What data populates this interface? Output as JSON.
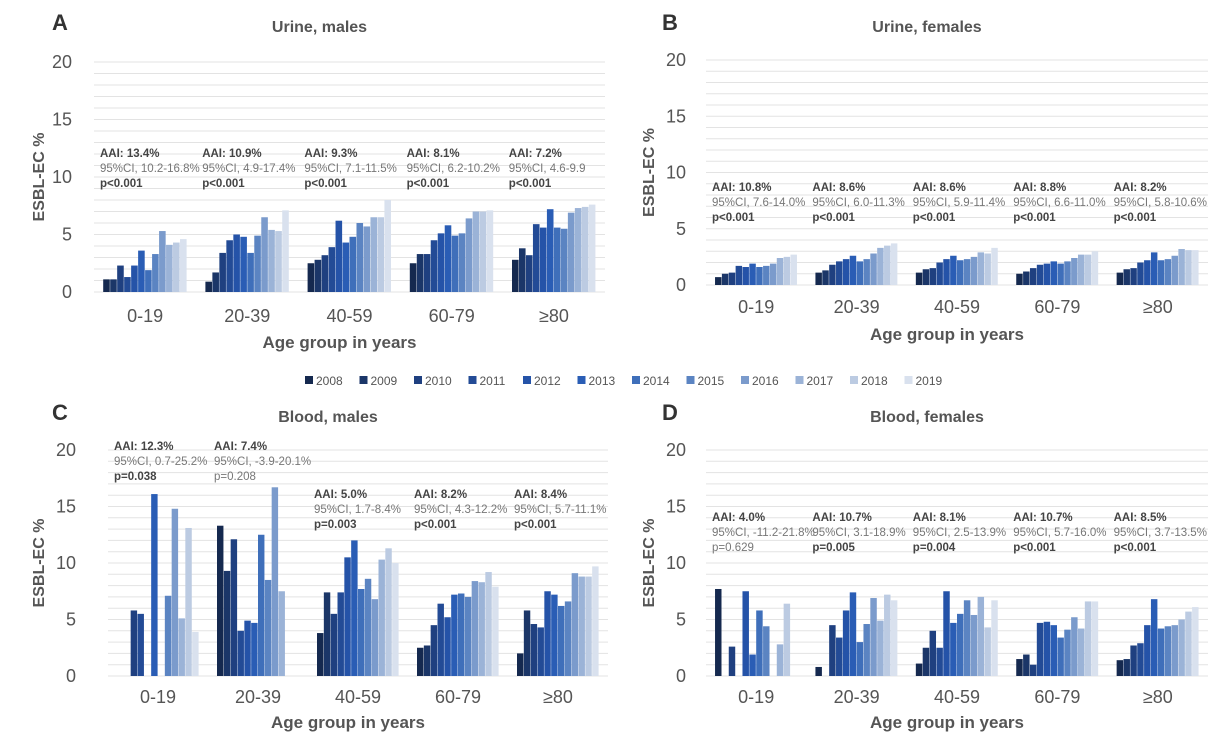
{
  "chart_data": [
    {
      "type": "bar",
      "panel": "A",
      "title": "Urine, males",
      "xlabel": "Age group in years",
      "ylabel": "ESBL-EC %",
      "ylim": [
        0,
        20
      ],
      "yticks": [
        "0",
        "5",
        "10",
        "15",
        "20"
      ],
      "grid": true,
      "categories": [
        "0-19",
        "20-39",
        "40-59",
        "60-79",
        "≥80"
      ],
      "series": [
        {
          "name": "2008",
          "values": [
            1.1,
            0.9,
            2.5,
            2.5,
            2.8
          ]
        },
        {
          "name": "2009",
          "values": [
            1.1,
            1.7,
            2.8,
            3.3,
            3.8
          ]
        },
        {
          "name": "2010",
          "values": [
            2.3,
            3.4,
            3.2,
            3.3,
            3.2
          ]
        },
        {
          "name": "2011",
          "values": [
            1.3,
            4.5,
            3.9,
            4.5,
            5.9
          ]
        },
        {
          "name": "2012",
          "values": [
            2.3,
            5.0,
            6.2,
            5.1,
            5.6
          ]
        },
        {
          "name": "2013",
          "values": [
            3.6,
            4.8,
            4.3,
            5.8,
            7.2
          ]
        },
        {
          "name": "2014",
          "values": [
            1.9,
            3.4,
            4.8,
            4.9,
            5.6
          ]
        },
        {
          "name": "2015",
          "values": [
            3.3,
            4.9,
            6.0,
            5.1,
            5.5
          ]
        },
        {
          "name": "2016",
          "values": [
            5.3,
            6.5,
            5.7,
            6.4,
            6.9
          ]
        },
        {
          "name": "2017",
          "values": [
            4.1,
            5.4,
            6.5,
            7.0,
            7.3
          ]
        },
        {
          "name": "2018",
          "values": [
            4.3,
            5.3,
            6.5,
            7.0,
            7.4
          ]
        },
        {
          "name": "2019",
          "values": [
            4.6,
            7.1,
            8.0,
            7.1,
            7.6
          ]
        }
      ],
      "annotations": [
        {
          "aai": "AAI: 13.4%",
          "ci": "95%CI, 10.2-16.8%",
          "p": "p<0.001",
          "p_bold": true
        },
        {
          "aai": "AAI: 10.9%",
          "ci": "95%CI, 4.9-17.4%",
          "p": "p<0.001",
          "p_bold": true
        },
        {
          "aai": "AAI: 9.3%",
          "ci": "95%CI, 7.1-11.5%",
          "p": "p<0.001",
          "p_bold": true
        },
        {
          "aai": "AAI: 8.1%",
          "ci": "95%CI, 6.2-10.2%",
          "p": "p<0.001",
          "p_bold": true
        },
        {
          "aai": "AAI: 7.2%",
          "ci": "95%CI, 4.6-9.9",
          "p": "p<0.001",
          "p_bold": true
        }
      ]
    },
    {
      "type": "bar",
      "panel": "B",
      "title": "Urine, females",
      "xlabel": "Age group in years",
      "ylabel": "ESBL-EC %",
      "ylim": [
        0,
        20
      ],
      "yticks": [
        "0",
        "5",
        "10",
        "15",
        "20"
      ],
      "grid": true,
      "categories": [
        "0-19",
        "20-39",
        "40-59",
        "60-79",
        "≥80"
      ],
      "series": [
        {
          "name": "2008",
          "values": [
            0.7,
            1.1,
            1.1,
            1.0,
            1.1
          ]
        },
        {
          "name": "2009",
          "values": [
            1.0,
            1.3,
            1.4,
            1.2,
            1.4
          ]
        },
        {
          "name": "2010",
          "values": [
            1.1,
            1.8,
            1.5,
            1.5,
            1.5
          ]
        },
        {
          "name": "2011",
          "values": [
            1.7,
            2.1,
            2.0,
            1.8,
            2.0
          ]
        },
        {
          "name": "2012",
          "values": [
            1.6,
            2.3,
            2.3,
            1.9,
            2.2
          ]
        },
        {
          "name": "2013",
          "values": [
            1.9,
            2.6,
            2.6,
            2.1,
            2.9
          ]
        },
        {
          "name": "2014",
          "values": [
            1.6,
            2.1,
            2.2,
            1.9,
            2.2
          ]
        },
        {
          "name": "2015",
          "values": [
            1.7,
            2.3,
            2.3,
            2.1,
            2.3
          ]
        },
        {
          "name": "2016",
          "values": [
            1.9,
            2.8,
            2.5,
            2.4,
            2.6
          ]
        },
        {
          "name": "2017",
          "values": [
            2.4,
            3.3,
            2.9,
            2.7,
            3.2
          ]
        },
        {
          "name": "2018",
          "values": [
            2.5,
            3.5,
            2.8,
            2.7,
            3.1
          ]
        },
        {
          "name": "2019",
          "values": [
            2.7,
            3.7,
            3.3,
            3.0,
            3.1
          ]
        }
      ],
      "annotations": [
        {
          "aai": "AAI: 10.8%",
          "ci": "95%CI, 7.6-14.0%",
          "p": "p<0.001",
          "p_bold": true
        },
        {
          "aai": "AAI: 8.6%",
          "ci": "95%CI, 6.0-11.3%",
          "p": "p<0.001",
          "p_bold": true
        },
        {
          "aai": "AAI: 8.6%",
          "ci": "95%CI, 5.9-11.4%",
          "p": "p<0.001",
          "p_bold": true
        },
        {
          "aai": "AAI: 8.8%",
          "ci": "95%CI, 6.6-11.0%",
          "p": "p<0.001",
          "p_bold": true
        },
        {
          "aai": "AAI: 8.2%",
          "ci": "95%CI, 5.8-10.6%",
          "p": "p<0.001",
          "p_bold": true
        }
      ]
    },
    {
      "type": "bar",
      "panel": "C",
      "title": "Blood, males",
      "xlabel": "Age group in years",
      "ylabel": "ESBL-EC %",
      "ylim": [
        0,
        20
      ],
      "yticks": [
        "0",
        "5",
        "10",
        "15",
        "20"
      ],
      "grid": true,
      "categories": [
        "0-19",
        "20-39",
        "40-59",
        "60-79",
        "≥80"
      ],
      "series": [
        {
          "name": "2008",
          "values": [
            0,
            13.3,
            3.8,
            2.5,
            2.0
          ]
        },
        {
          "name": "2009",
          "values": [
            0,
            9.3,
            7.4,
            2.7,
            5.8
          ]
        },
        {
          "name": "2010",
          "values": [
            5.8,
            12.1,
            5.5,
            4.5,
            4.6
          ]
        },
        {
          "name": "2011",
          "values": [
            5.5,
            4.0,
            7.4,
            6.4,
            4.3
          ]
        },
        {
          "name": "2012",
          "values": [
            0,
            4.9,
            10.5,
            5.2,
            7.5
          ]
        },
        {
          "name": "2013",
          "values": [
            16.1,
            4.7,
            12.0,
            7.2,
            7.2
          ]
        },
        {
          "name": "2014",
          "values": [
            0,
            12.5,
            7.7,
            7.3,
            6.2
          ]
        },
        {
          "name": "2015",
          "values": [
            7.1,
            8.5,
            8.6,
            7.0,
            6.6
          ]
        },
        {
          "name": "2016",
          "values": [
            14.8,
            16.7,
            6.8,
            8.4,
            9.1
          ]
        },
        {
          "name": "2017",
          "values": [
            5.1,
            7.5,
            10.3,
            8.3,
            8.8
          ]
        },
        {
          "name": "2018",
          "values": [
            13.1,
            0,
            11.3,
            9.2,
            8.8
          ]
        },
        {
          "name": "2019",
          "values": [
            3.9,
            0,
            10.0,
            7.9,
            9.7
          ]
        }
      ],
      "annotations": [
        {
          "aai": "AAI: 12.3%",
          "ci": "95%CI, 0.7-25.2%",
          "p": "p=0.038",
          "p_bold": true
        },
        {
          "aai": "AAI: 7.4%",
          "ci": "95%CI, -3.9-20.1%",
          "p": "p=0.208",
          "p_bold": false
        },
        {
          "aai": "AAI: 5.0%",
          "ci": "95%CI, 1.7-8.4%",
          "p": "p=0.003",
          "p_bold": true
        },
        {
          "aai": "AAI: 8.2%",
          "ci": "95%CI, 4.3-12.2%",
          "p": "p<0.001",
          "p_bold": true
        },
        {
          "aai": "AAI: 8.4%",
          "ci": "95%CI, 5.7-11.1%",
          "p": "p<0.001",
          "p_bold": true
        }
      ]
    },
    {
      "type": "bar",
      "panel": "D",
      "title": "Blood, females",
      "xlabel": "Age group in years",
      "ylabel": "ESBL-EC %",
      "ylim": [
        0,
        20
      ],
      "yticks": [
        "0",
        "5",
        "10",
        "15",
        "20"
      ],
      "grid": true,
      "categories": [
        "0-19",
        "20-39",
        "40-59",
        "60-79",
        "≥80"
      ],
      "series": [
        {
          "name": "2008",
          "values": [
            7.7,
            0.8,
            1.1,
            1.5,
            1.4
          ]
        },
        {
          "name": "2009",
          "values": [
            0,
            0,
            2.5,
            1.9,
            1.5
          ]
        },
        {
          "name": "2010",
          "values": [
            2.6,
            4.5,
            4.0,
            1.0,
            2.7
          ]
        },
        {
          "name": "2011",
          "values": [
            0,
            3.4,
            2.5,
            4.7,
            2.9
          ]
        },
        {
          "name": "2012",
          "values": [
            7.5,
            5.8,
            7.5,
            4.8,
            4.5
          ]
        },
        {
          "name": "2013",
          "values": [
            1.9,
            7.4,
            4.7,
            4.5,
            6.8
          ]
        },
        {
          "name": "2014",
          "values": [
            5.8,
            3.0,
            5.5,
            3.4,
            4.2
          ]
        },
        {
          "name": "2015",
          "values": [
            4.4,
            4.6,
            6.7,
            4.1,
            4.4
          ]
        },
        {
          "name": "2016",
          "values": [
            0,
            6.9,
            5.4,
            5.2,
            4.5
          ]
        },
        {
          "name": "2017",
          "values": [
            2.8,
            4.9,
            7.0,
            4.2,
            5.0
          ]
        },
        {
          "name": "2018",
          "values": [
            6.4,
            7.2,
            4.3,
            6.6,
            5.7
          ]
        },
        {
          "name": "2019",
          "values": [
            0,
            6.7,
            6.7,
            6.6,
            6.1
          ]
        }
      ],
      "annotations": [
        {
          "aai": "AAI: 4.0%",
          "ci": "95%CI, -11.2-21.8%",
          "p": "p=0.629",
          "p_bold": false
        },
        {
          "aai": "AAI: 10.7%",
          "ci": "95%CI, 3.1-18.9%",
          "p": "p=0.005",
          "p_bold": true
        },
        {
          "aai": "AAI: 8.1%",
          "ci": "95%CI, 2.5-13.9%",
          "p": "p=0.004",
          "p_bold": true
        },
        {
          "aai": "AAI: 10.7%",
          "ci": "95%CI, 5.7-16.0%",
          "p": "p<0.001",
          "p_bold": true
        },
        {
          "aai": "AAI: 8.5%",
          "ci": "95%CI, 3.7-13.5%",
          "p": "p<0.001",
          "p_bold": true
        }
      ]
    }
  ],
  "legend": {
    "labels": [
      "2008",
      "2009",
      "2010",
      "2011",
      "2012",
      "2013",
      "2014",
      "2015",
      "2016",
      "2017",
      "2018",
      "2019"
    ],
    "colors": [
      "#15294f",
      "#1b3668",
      "#1f4080",
      "#234b96",
      "#2553a8",
      "#2a5db5",
      "#3f6fba",
      "#5b84c2",
      "#7b9bcc",
      "#9bb3d7",
      "#bccbe2",
      "#d9e1ee"
    ]
  },
  "style": {
    "grid_color": "#e3e3e3",
    "axis_text_color": "#555555",
    "title_color": "#555555",
    "annotation_gray": "#777777",
    "annotation_dark": "#444444"
  }
}
